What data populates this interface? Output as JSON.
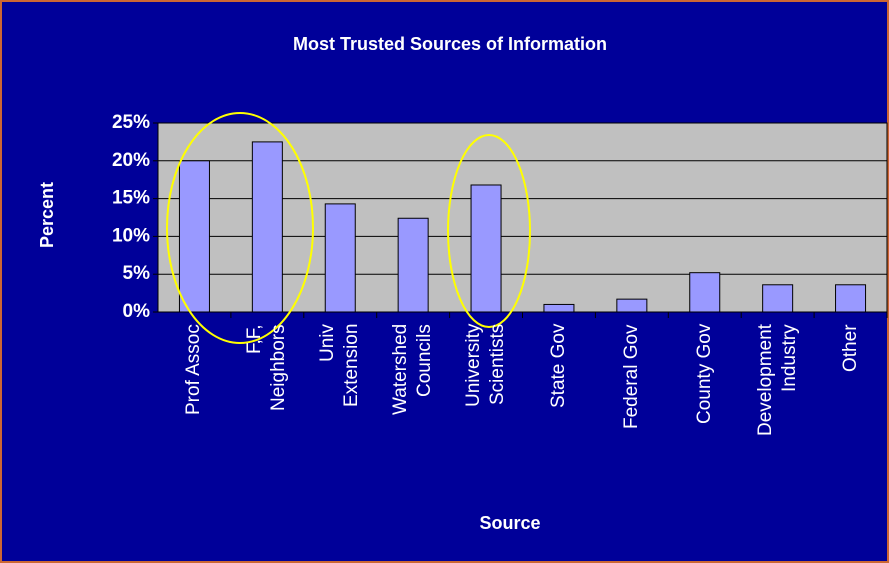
{
  "chart_data": {
    "type": "bar",
    "title": "Most Trusted Sources of Information",
    "x_label": "Source",
    "y_label": "Percent",
    "categories": [
      "Prof Assoc",
      "F,F,\nNeighbors",
      "Univ\nExtension",
      "Watershed\nCouncils",
      "University\nScientists",
      "State Gov",
      "Federal Gov",
      "County Gov",
      "Development\nIndustry",
      "Other"
    ],
    "values": [
      20,
      22.5,
      14.3,
      12.4,
      16.8,
      1,
      1.7,
      5.2,
      3.6,
      3.6
    ],
    "color": "#9999ff",
    "ylim": [
      0,
      25
    ],
    "yticks": [
      {
        "value": 0,
        "label": "0%"
      },
      {
        "value": 5,
        "label": "5%"
      },
      {
        "value": 10,
        "label": "10%"
      },
      {
        "value": 15,
        "label": "15%"
      },
      {
        "value": 20,
        "label": "20%"
      },
      {
        "value": 25,
        "label": "25%"
      }
    ],
    "grid": true
  }
}
